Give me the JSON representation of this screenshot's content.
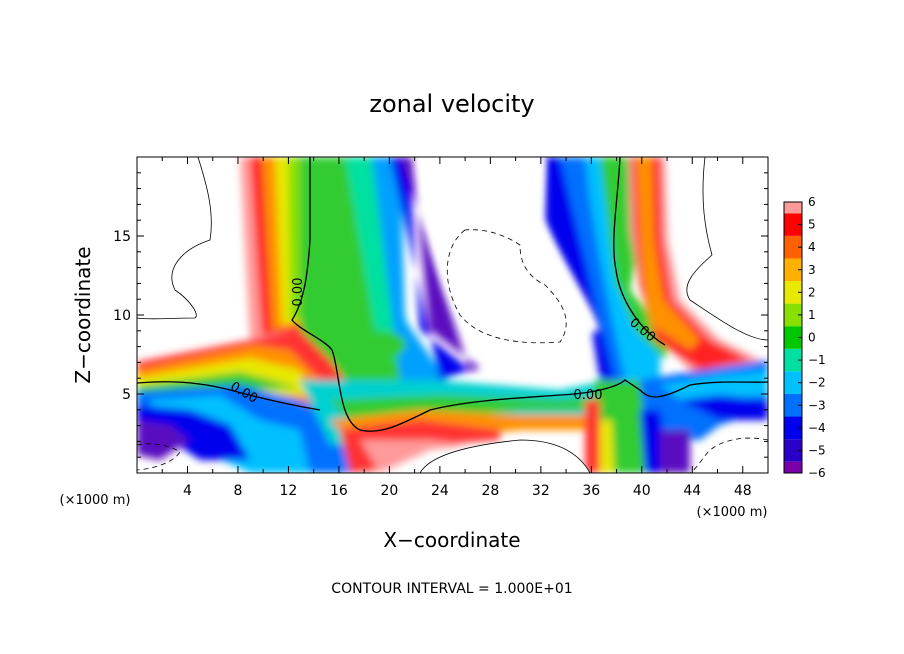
{
  "chart_data": {
    "type": "contour",
    "title": "zonal velocity",
    "xlabel": "X−coordinate",
    "ylabel": "Z−coordinate",
    "x_units": "(×1000 m)",
    "y_units": "(×1000 m)",
    "xlim": [
      0,
      50
    ],
    "ylim": [
      0,
      20
    ],
    "x_ticks": [
      "4",
      "8",
      "12",
      "16",
      "20",
      "24",
      "28",
      "32",
      "36",
      "40",
      "44",
      "48"
    ],
    "y_ticks": [
      "5",
      "10",
      "15"
    ],
    "colorbar_ticks": [
      "6",
      "5",
      "4",
      "3",
      "2",
      "1",
      "0",
      "−1",
      "−2",
      "−3",
      "−4",
      "−5",
      "−6"
    ],
    "colorbar_range": [
      -6,
      6
    ],
    "contour_labels": [
      "0.00",
      "0.00",
      "0.00",
      "0.00"
    ],
    "footer": "CONTOUR INTERVAL =  1.000E+01",
    "colors": {
      "-6": "#7a00a8",
      "-5": "#2a00c8",
      "-4": "#0000ee",
      "-3": "#0070ff",
      "-2": "#00c0ff",
      "-1": "#00e0a0",
      "0": "#00c800",
      "1": "#88e000",
      "2": "#e8e800",
      "3": "#ffb000",
      "4": "#ff6000",
      "5": "#ff0000",
      "6": "#ff9a9a"
    }
  }
}
